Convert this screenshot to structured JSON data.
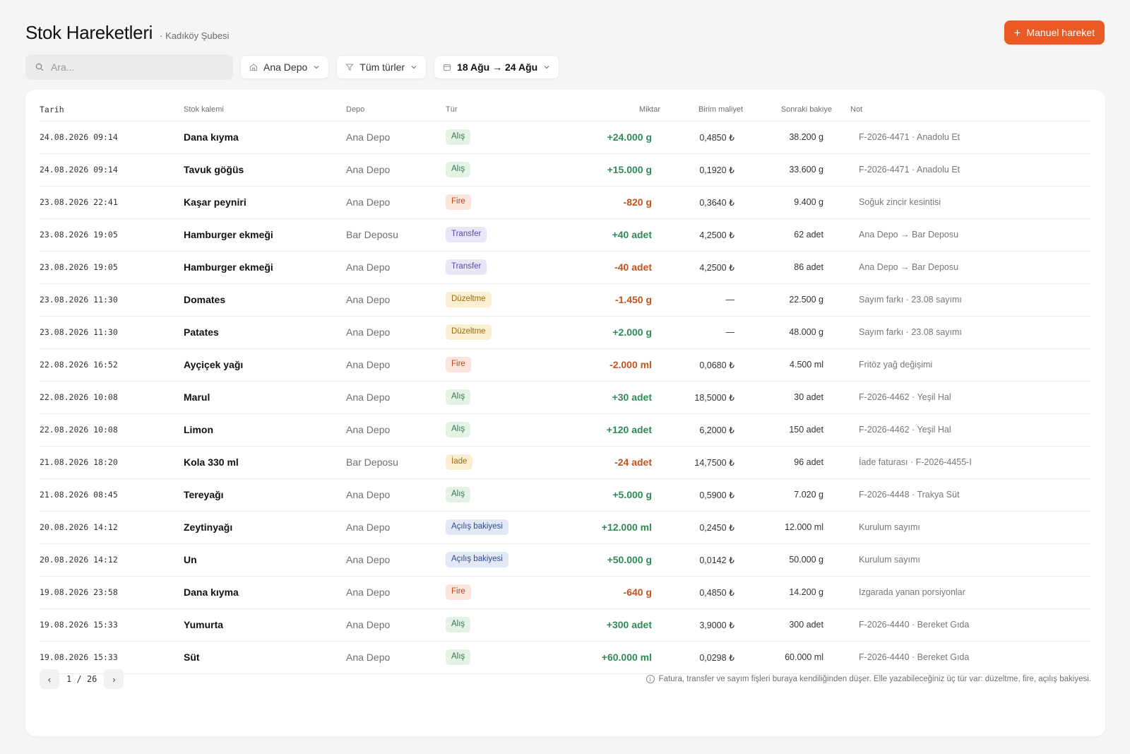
{
  "header": {
    "title": "Stok Hareketleri",
    "subtitle": "· Kadıköy Şubesi",
    "primary_button": "Manuel hareket"
  },
  "toolbar": {
    "search_placeholder": "Ara...",
    "warehouse_filter": "Ana Depo",
    "type_filter": "Tüm türler",
    "date_filter": "18 Ağu → 24 Ağu"
  },
  "icons": {
    "search": "search-icon",
    "warehouse": "home-icon",
    "type": "filter-icon",
    "date": "calendar-icon",
    "add": "plus-icon",
    "chevron": "chevron-down-icon",
    "info": "info-icon"
  },
  "colors": {
    "accent": "#ea5a24",
    "positive": "#2f8a55",
    "negative": "#c2521f"
  },
  "table": {
    "columns": {
      "date": "Tarih",
      "item": "Stok kalemi",
      "depo": "Depo",
      "type": "Tür",
      "qty": "Miktar",
      "cost": "Birim maliyet",
      "balance": "Sonraki bakiye",
      "note": "Not"
    },
    "rows": [
      {
        "date": "24.08.2026 09:14",
        "item": "Dana kıyma",
        "depo": "Ana Depo",
        "type": "Alış",
        "type_class": "alis",
        "qty": "+24.000 g",
        "sign": "pos",
        "cost": "0,4850 ₺",
        "balance": "38.200 g",
        "note": "F-2026-4471 · Anadolu Et"
      },
      {
        "date": "24.08.2026 09:14",
        "item": "Tavuk göğüs",
        "depo": "Ana Depo",
        "type": "Alış",
        "type_class": "alis",
        "qty": "+15.000 g",
        "sign": "pos",
        "cost": "0,1920 ₺",
        "balance": "33.600 g",
        "note": "F-2026-4471 · Anadolu Et"
      },
      {
        "date": "23.08.2026 22:41",
        "item": "Kaşar peyniri",
        "depo": "Ana Depo",
        "type": "Fire",
        "type_class": "fire",
        "qty": "-820 g",
        "sign": "neg",
        "cost": "0,3640 ₺",
        "balance": "9.400 g",
        "note": "Soğuk zincir kesintisi"
      },
      {
        "date": "23.08.2026 19:05",
        "item": "Hamburger ekmeği",
        "depo": "Bar Deposu",
        "type": "Transfer",
        "type_class": "transfer",
        "qty": "+40 adet",
        "sign": "pos",
        "cost": "4,2500 ₺",
        "balance": "62 adet",
        "note": "Ana Depo → Bar Deposu"
      },
      {
        "date": "23.08.2026 19:05",
        "item": "Hamburger ekmeği",
        "depo": "Ana Depo",
        "type": "Transfer",
        "type_class": "transfer",
        "qty": "-40 adet",
        "sign": "neg",
        "cost": "4,2500 ₺",
        "balance": "86 adet",
        "note": "Ana Depo → Bar Deposu"
      },
      {
        "date": "23.08.2026 11:30",
        "item": "Domates",
        "depo": "Ana Depo",
        "type": "Düzeltme",
        "type_class": "duzeltme",
        "qty": "-1.450 g",
        "sign": "neg",
        "cost": "—",
        "balance": "22.500 g",
        "note": "Sayım farkı · 23.08 sayımı"
      },
      {
        "date": "23.08.2026 11:30",
        "item": "Patates",
        "depo": "Ana Depo",
        "type": "Düzeltme",
        "type_class": "duzeltme",
        "qty": "+2.000 g",
        "sign": "pos",
        "cost": "—",
        "balance": "48.000 g",
        "note": "Sayım farkı · 23.08 sayımı"
      },
      {
        "date": "22.08.2026 16:52",
        "item": "Ayçiçek yağı",
        "depo": "Ana Depo",
        "type": "Fire",
        "type_class": "fire",
        "qty": "-2.000 ml",
        "sign": "neg",
        "cost": "0,0680 ₺",
        "balance": "4.500 ml",
        "note": "Fritöz yağ değişimi"
      },
      {
        "date": "22.08.2026 10:08",
        "item": "Marul",
        "depo": "Ana Depo",
        "type": "Alış",
        "type_class": "alis",
        "qty": "+30 adet",
        "sign": "pos",
        "cost": "18,5000 ₺",
        "balance": "30 adet",
        "note": "F-2026-4462 · Yeşil Hal"
      },
      {
        "date": "22.08.2026 10:08",
        "item": "Limon",
        "depo": "Ana Depo",
        "type": "Alış",
        "type_class": "alis",
        "qty": "+120 adet",
        "sign": "pos",
        "cost": "6,2000 ₺",
        "balance": "150 adet",
        "note": "F-2026-4462 · Yeşil Hal"
      },
      {
        "date": "21.08.2026 18:20",
        "item": "Kola 330 ml",
        "depo": "Bar Deposu",
        "type": "İade",
        "type_class": "iade",
        "qty": "-24 adet",
        "sign": "neg",
        "cost": "14,7500 ₺",
        "balance": "96 adet",
        "note": "İade faturası · F-2026-4455-I"
      },
      {
        "date": "21.08.2026 08:45",
        "item": "Tereyağı",
        "depo": "Ana Depo",
        "type": "Alış",
        "type_class": "alis",
        "qty": "+5.000 g",
        "sign": "pos",
        "cost": "0,5900 ₺",
        "balance": "7.020 g",
        "note": "F-2026-4448 · Trakya Süt"
      },
      {
        "date": "20.08.2026 14:12",
        "item": "Zeytinyağı",
        "depo": "Ana Depo",
        "type": "Açılış bakiyesi",
        "type_class": "acilis",
        "qty": "+12.000 ml",
        "sign": "pos",
        "cost": "0,2450 ₺",
        "balance": "12.000 ml",
        "note": "Kurulum sayımı"
      },
      {
        "date": "20.08.2026 14:12",
        "item": "Un",
        "depo": "Ana Depo",
        "type": "Açılış bakiyesi",
        "type_class": "acilis",
        "qty": "+50.000 g",
        "sign": "pos",
        "cost": "0,0142 ₺",
        "balance": "50.000 g",
        "note": "Kurulum sayımı"
      },
      {
        "date": "19.08.2026 23:58",
        "item": "Dana kıyma",
        "depo": "Ana Depo",
        "type": "Fire",
        "type_class": "fire",
        "qty": "-640 g",
        "sign": "neg",
        "cost": "0,4850 ₺",
        "balance": "14.200 g",
        "note": "Izgarada yanan porsiyonlar"
      },
      {
        "date": "19.08.2026 15:33",
        "item": "Yumurta",
        "depo": "Ana Depo",
        "type": "Alış",
        "type_class": "alis",
        "qty": "+300 adet",
        "sign": "pos",
        "cost": "3,9000 ₺",
        "balance": "300 adet",
        "note": "F-2026-4440 · Bereket Gıda"
      },
      {
        "date": "19.08.2026 15:33",
        "item": "Süt",
        "depo": "Ana Depo",
        "type": "Alış",
        "type_class": "alis",
        "qty": "+60.000 ml",
        "sign": "pos",
        "cost": "0,0298 ₺",
        "balance": "60.000 ml",
        "note": "F-2026-4440 · Bereket Gıda"
      }
    ]
  },
  "pagination": {
    "current": "1",
    "separator": "/",
    "total": "26",
    "prev": "‹",
    "next": "›"
  },
  "footer_hint": "Fatura, transfer ve sayım fişleri buraya kendiliğinden düşer. Elle yazabileceğiniz üç tür var: düzeltme, fire, açılış bakiyesi."
}
